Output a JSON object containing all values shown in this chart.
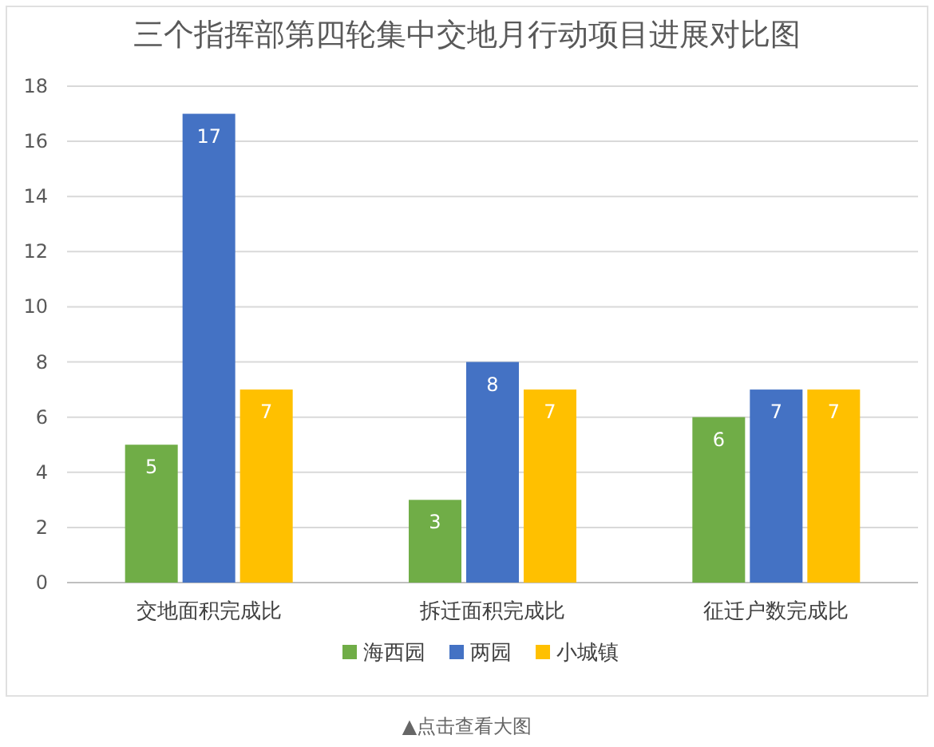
{
  "chart_data": {
    "type": "bar",
    "title": "三个指挥部第四轮集中交地月行动项目进展对比图",
    "categories": [
      "交地面积完成比",
      "拆迁面积完成比",
      "征迁户数完成比"
    ],
    "series": [
      {
        "name": "海西园",
        "color": "#70ad47",
        "values": [
          5,
          3,
          6
        ]
      },
      {
        "name": "两园",
        "color": "#4472c4",
        "values": [
          17,
          8,
          7
        ]
      },
      {
        "name": "小城镇",
        "color": "#ffc000",
        "values": [
          7,
          7,
          7
        ]
      }
    ],
    "ylim": [
      0,
      18
    ],
    "yticks": [
      0,
      2,
      4,
      6,
      8,
      10,
      12,
      14,
      16,
      18
    ],
    "grid": "y",
    "legend": "bottom",
    "data_labels": true,
    "annotations": [
      "▲点击查看大图"
    ]
  }
}
